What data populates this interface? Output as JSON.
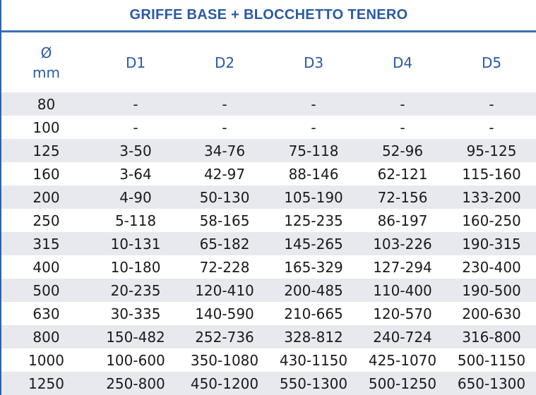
{
  "title": "GRIFFE BASE + BLOCCHETTO TENERO",
  "header": {
    "diameter_symbol": "Ø",
    "diameter_unit": "mm",
    "columns": [
      "D1",
      "D2",
      "D3",
      "D4",
      "D5"
    ]
  },
  "rows": [
    {
      "d": "80",
      "v": [
        "-",
        "-",
        "-",
        "-",
        "-"
      ]
    },
    {
      "d": "100",
      "v": [
        "-",
        "-",
        "-",
        "-",
        "-"
      ]
    },
    {
      "d": "125",
      "v": [
        "3-50",
        "34-76",
        "75-118",
        "52-96",
        "95-125"
      ]
    },
    {
      "d": "160",
      "v": [
        "3-64",
        "42-97",
        "88-146",
        "62-121",
        "115-160"
      ]
    },
    {
      "d": "200",
      "v": [
        "4-90",
        "50-130",
        "105-190",
        "72-156",
        "133-200"
      ]
    },
    {
      "d": "250",
      "v": [
        "5-118",
        "58-165",
        "125-235",
        "86-197",
        "160-250"
      ]
    },
    {
      "d": "315",
      "v": [
        "10-131",
        "65-182",
        "145-265",
        "103-226",
        "190-315"
      ]
    },
    {
      "d": "400",
      "v": [
        "10-180",
        "72-228",
        "165-329",
        "127-294",
        "230-400"
      ]
    },
    {
      "d": "500",
      "v": [
        "20-235",
        "120-410",
        "200-485",
        "110-400",
        "190-500"
      ]
    },
    {
      "d": "630",
      "v": [
        "30-335",
        "140-590",
        "210-665",
        "120-570",
        "200-630"
      ]
    },
    {
      "d": "800",
      "v": [
        "150-482",
        "252-736",
        "328-812",
        "240-724",
        "316-800"
      ]
    },
    {
      "d": "1000",
      "v": [
        "100-600",
        "350-1080",
        "430-1150",
        "425-1070",
        "500-1150"
      ]
    },
    {
      "d": "1250",
      "v": [
        "250-800",
        "450-1200",
        "550-1300",
        "500-1250",
        "650-1300"
      ]
    }
  ]
}
